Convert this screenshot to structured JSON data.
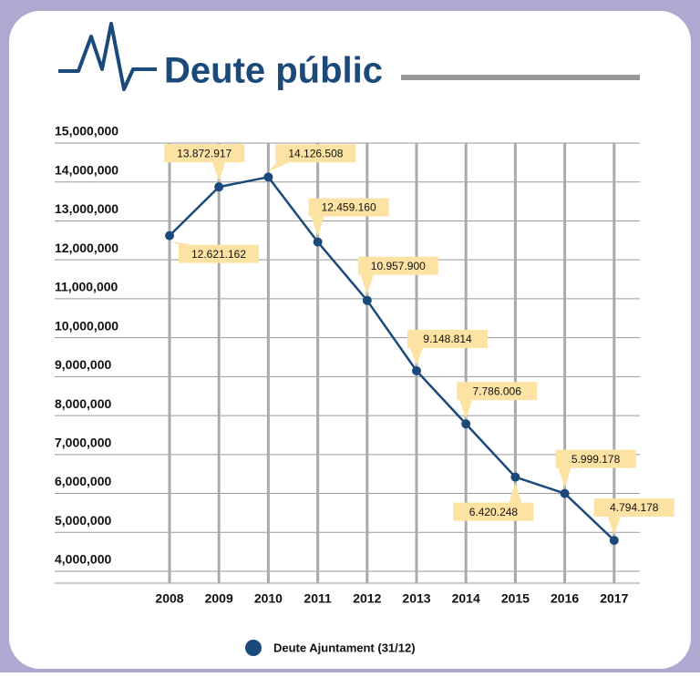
{
  "chart_data": {
    "type": "line",
    "title": "Deute públic",
    "categories": [
      "2008",
      "2009",
      "2010",
      "2011",
      "2012",
      "2013",
      "2014",
      "2015",
      "2016",
      "2017"
    ],
    "series": [
      {
        "name": "Deute Ajuntament (31/12)",
        "color": "#1b4a7a",
        "values": [
          12621162,
          13872917,
          14126508,
          12459160,
          10957900,
          9148814,
          7786006,
          6420248,
          5999178,
          4794178
        ],
        "value_labels": [
          "12.621.162",
          "13.872.917",
          "14.126.508",
          "12.459.160",
          "10.957.900",
          "9.148.814",
          "7.786.006",
          "6.420.248",
          "5.999.178",
          "4.794.178"
        ]
      }
    ],
    "ylim": [
      4000000,
      15000000
    ],
    "yticks": [
      {
        "value": 4000000,
        "label": "4,000,000"
      },
      {
        "value": 5000000,
        "label": "5,000,000"
      },
      {
        "value": 6000000,
        "label": "6,000,000"
      },
      {
        "value": 7000000,
        "label": "7,000,000"
      },
      {
        "value": 8000000,
        "label": "8,000,000"
      },
      {
        "value": 9000000,
        "label": "9,000,000"
      },
      {
        "value": 10000000,
        "label": "10,000,000"
      },
      {
        "value": 11000000,
        "label": "11,000,000"
      },
      {
        "value": 12000000,
        "label": "12,000,000"
      },
      {
        "value": 13000000,
        "label": "13,000,000"
      },
      {
        "value": 14000000,
        "label": "14,000,000"
      },
      {
        "value": 15000000,
        "label": "15,000,000"
      }
    ],
    "grid": true,
    "legend": "bottom",
    "label_color": "#fde3a3"
  }
}
